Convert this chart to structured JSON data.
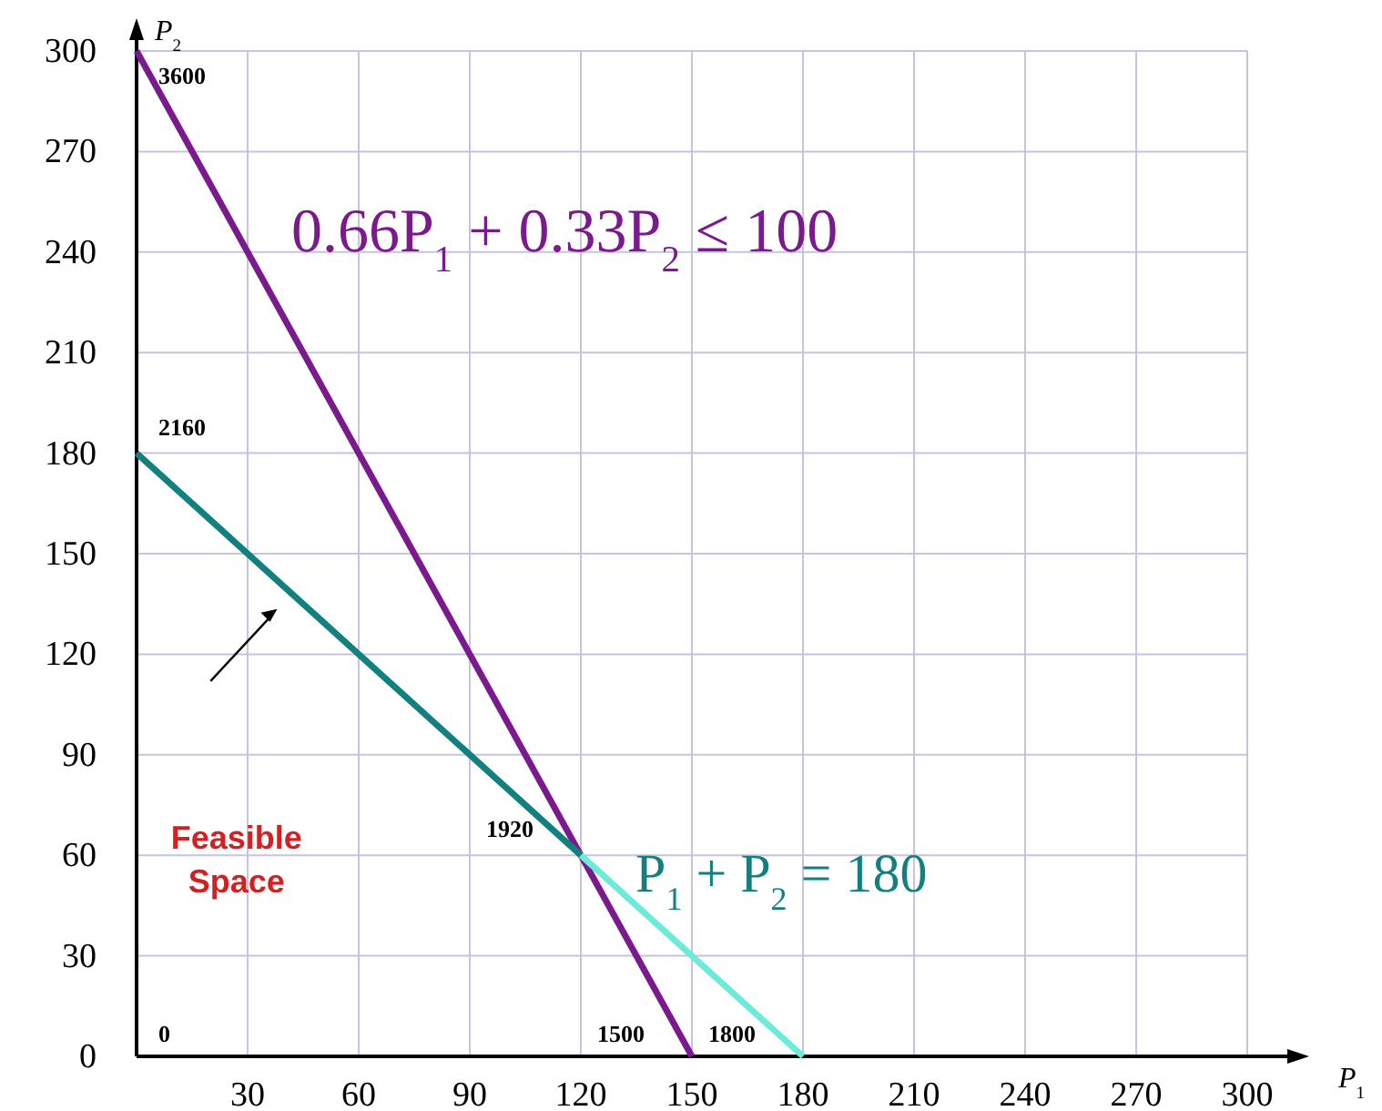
{
  "chart_data": {
    "type": "line",
    "xlabel": "P$_{1}$",
    "ylabel": "P$_{2}$",
    "xlim": [
      0,
      300
    ],
    "ylim": [
      0,
      300
    ],
    "xticks": [
      30,
      60,
      90,
      120,
      150,
      180,
      210,
      240,
      270,
      300
    ],
    "yticks": [
      0,
      30,
      60,
      90,
      120,
      150,
      180,
      210,
      240,
      270,
      300
    ],
    "grid": true,
    "marker": "none",
    "line_style": "solid",
    "series": [
      {
        "name": "0.66P$_{1}$ + 0.33P$_{2}$ ≤ 100",
        "color": "#7a1a8c",
        "x": [
          0,
          150
        ],
        "values": [
          300,
          0
        ]
      },
      {
        "name": "P$_{1}$ + P$_{2}$ = 180",
        "color": "#138080",
        "x": [
          0,
          120
        ],
        "values": [
          180,
          60
        ]
      },
      {
        "color": "#6eead9",
        "x": [
          120,
          180
        ],
        "values": [
          60,
          0
        ]
      }
    ],
    "annotations": [
      {
        "text": "3600",
        "x": 0,
        "y": 300
      },
      {
        "text": "2160",
        "x": 0,
        "y": 180
      },
      {
        "text": "1920",
        "x": 120,
        "y": 60
      },
      {
        "text": "1500",
        "x": 150,
        "y": 0
      },
      {
        "text": "1800",
        "x": 180,
        "y": 0
      },
      "0",
      "Feasible Space"
    ]
  }
}
